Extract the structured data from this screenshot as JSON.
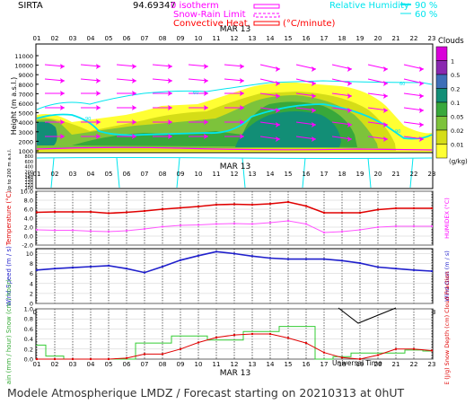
{
  "header": {
    "station": "SIRTA",
    "coords": "94.69347",
    "legend": [
      {
        "label": "0 isotherm",
        "color": "#ff00ff",
        "style": "solid"
      },
      {
        "label": "Snow-Rain Limit",
        "color": "#ff00ff",
        "style": "dashed"
      },
      {
        "label": "Convective Heat.",
        "color": "#ff0000",
        "style": "solid"
      }
    ],
    "heat_unit": "(°C/minute)",
    "rh_label": "Relative Humidity",
    "rh_levels": [
      "90 %",
      "60 %"
    ],
    "rh_color": "#00e5ee"
  },
  "time_axis": {
    "hours": [
      "01",
      "02",
      "03",
      "04",
      "05",
      "06",
      "07",
      "08",
      "09",
      "10",
      "11",
      "12",
      "13",
      "14",
      "15",
      "16",
      "17",
      "18",
      "19",
      "20",
      "21",
      "22",
      "23"
    ],
    "date": "MAR 13",
    "universal_time": "Universal Time"
  },
  "footer": "Modele Atmospherique LMDZ / Forecast starting on 20210313 at 0hUT",
  "clouds_scale": {
    "title": "Clouds",
    "unit": "(g/kg)",
    "ticks": [
      "1",
      "0.5",
      "0.2",
      "0.1",
      "0.05",
      "0.02",
      "0.01"
    ],
    "colors": [
      "#d900d9",
      "#8a28b0",
      "#3e6fb8",
      "#128e76",
      "#38a83b",
      "#7dc33b",
      "#d5dd17",
      "#ffff33"
    ]
  },
  "chart_data": [
    {
      "type": "heatmap",
      "name": "height-clouds",
      "ylabel": "Height (m a.s.l.)",
      "ylabel_low": "Up to 200 m a.s.l.",
      "yticks": [
        11000,
        10000,
        9000,
        8000,
        7000,
        6000,
        5000,
        4000,
        3000,
        2000,
        1000
      ],
      "yticks_low": [
        800,
        700,
        600,
        500,
        400,
        300,
        200,
        150,
        140,
        130,
        120,
        110,
        100
      ],
      "contour_labels": [
        "60",
        "60",
        "90",
        "90"
      ]
    },
    {
      "type": "line",
      "name": "temperature",
      "ylabel": "Temperature (°C)",
      "ylabel_right": "HUMIDEX (°C)",
      "yticks": [
        "10.0",
        "8.0",
        "6.0",
        "4.0",
        "2.0",
        "0.0",
        "-2.0"
      ],
      "ylim": [
        -2,
        10
      ],
      "x": [
        "01",
        "02",
        "03",
        "04",
        "05",
        "06",
        "07",
        "08",
        "09",
        "10",
        "11",
        "12",
        "13",
        "14",
        "15",
        "16",
        "17",
        "18",
        "19",
        "20",
        "21",
        "22",
        "23"
      ],
      "series": [
        {
          "color": "#e00000",
          "values": [
            5.3,
            5.4,
            5.4,
            5.4,
            5.1,
            5.3,
            5.6,
            6.0,
            6.3,
            6.6,
            7.0,
            7.1,
            7.0,
            7.2,
            7.6,
            6.7,
            5.2,
            5.2,
            5.2,
            5.9,
            6.2,
            6.2,
            6.2
          ]
        },
        {
          "color": "#ff55ff",
          "values": [
            1.4,
            1.3,
            1.3,
            1.1,
            1.0,
            1.2,
            1.6,
            2.1,
            2.4,
            2.5,
            2.7,
            2.8,
            2.7,
            3.0,
            3.4,
            2.7,
            0.8,
            1.0,
            1.4,
            2.0,
            2.2,
            2.2,
            2.2
          ]
        }
      ]
    },
    {
      "type": "line",
      "name": "wind",
      "ylabel": "Wind Speed (m / s)",
      "ylabel_right": "Wind Gust (m / s)",
      "yticks": [
        "10",
        "8",
        "6",
        "4",
        "2",
        "0"
      ],
      "ylim": [
        0,
        11
      ],
      "x": [
        "01",
        "02",
        "03",
        "04",
        "05",
        "06",
        "07",
        "08",
        "09",
        "10",
        "11",
        "12",
        "13",
        "14",
        "15",
        "16",
        "17",
        "18",
        "19",
        "20",
        "21",
        "22",
        "23"
      ],
      "series": [
        {
          "color": "#2020cc",
          "values": [
            6.7,
            7.0,
            7.2,
            7.4,
            7.6,
            7.0,
            6.2,
            7.4,
            8.7,
            9.6,
            10.4,
            10.0,
            9.5,
            9.1,
            8.9,
            8.9,
            8.9,
            8.6,
            8.1,
            7.3,
            7.0,
            6.7,
            6.5
          ]
        }
      ]
    },
    {
      "type": "line",
      "name": "precipitation",
      "ylabel": "Rain (mm / hour) Snow (cm / hour)",
      "ylabel_right": "CAPE (J/g) Snow Depth (cm) Cloud Fraction",
      "yticks": [
        "1.0",
        "0.8",
        "0.6",
        "0.4",
        "0.2",
        "0.0"
      ],
      "ylim": [
        0,
        1
      ],
      "x": [
        "01",
        "02",
        "03",
        "04",
        "05",
        "06",
        "07",
        "08",
        "09",
        "10",
        "11",
        "12",
        "13",
        "14",
        "15",
        "16",
        "17",
        "18",
        "19",
        "20",
        "21",
        "22",
        "23"
      ],
      "series": [
        {
          "color": "#33cc33",
          "values": [
            0.28,
            0.06,
            0.0,
            0.0,
            0.0,
            0.0,
            0.32,
            0.32,
            0.46,
            0.46,
            0.38,
            0.38,
            0.55,
            0.55,
            0.65,
            0.65,
            0.0,
            0.05,
            0.12,
            0.12,
            0.12,
            0.18,
            0.16
          ]
        },
        {
          "color": "#e00000",
          "values": [
            0.0,
            0.0,
            0.0,
            0.0,
            0.0,
            0.02,
            0.1,
            0.1,
            0.2,
            0.33,
            0.43,
            0.48,
            0.5,
            0.5,
            0.42,
            0.32,
            0.13,
            0.03,
            0.0,
            0.08,
            0.2,
            0.2,
            0.17
          ]
        }
      ]
    }
  ]
}
